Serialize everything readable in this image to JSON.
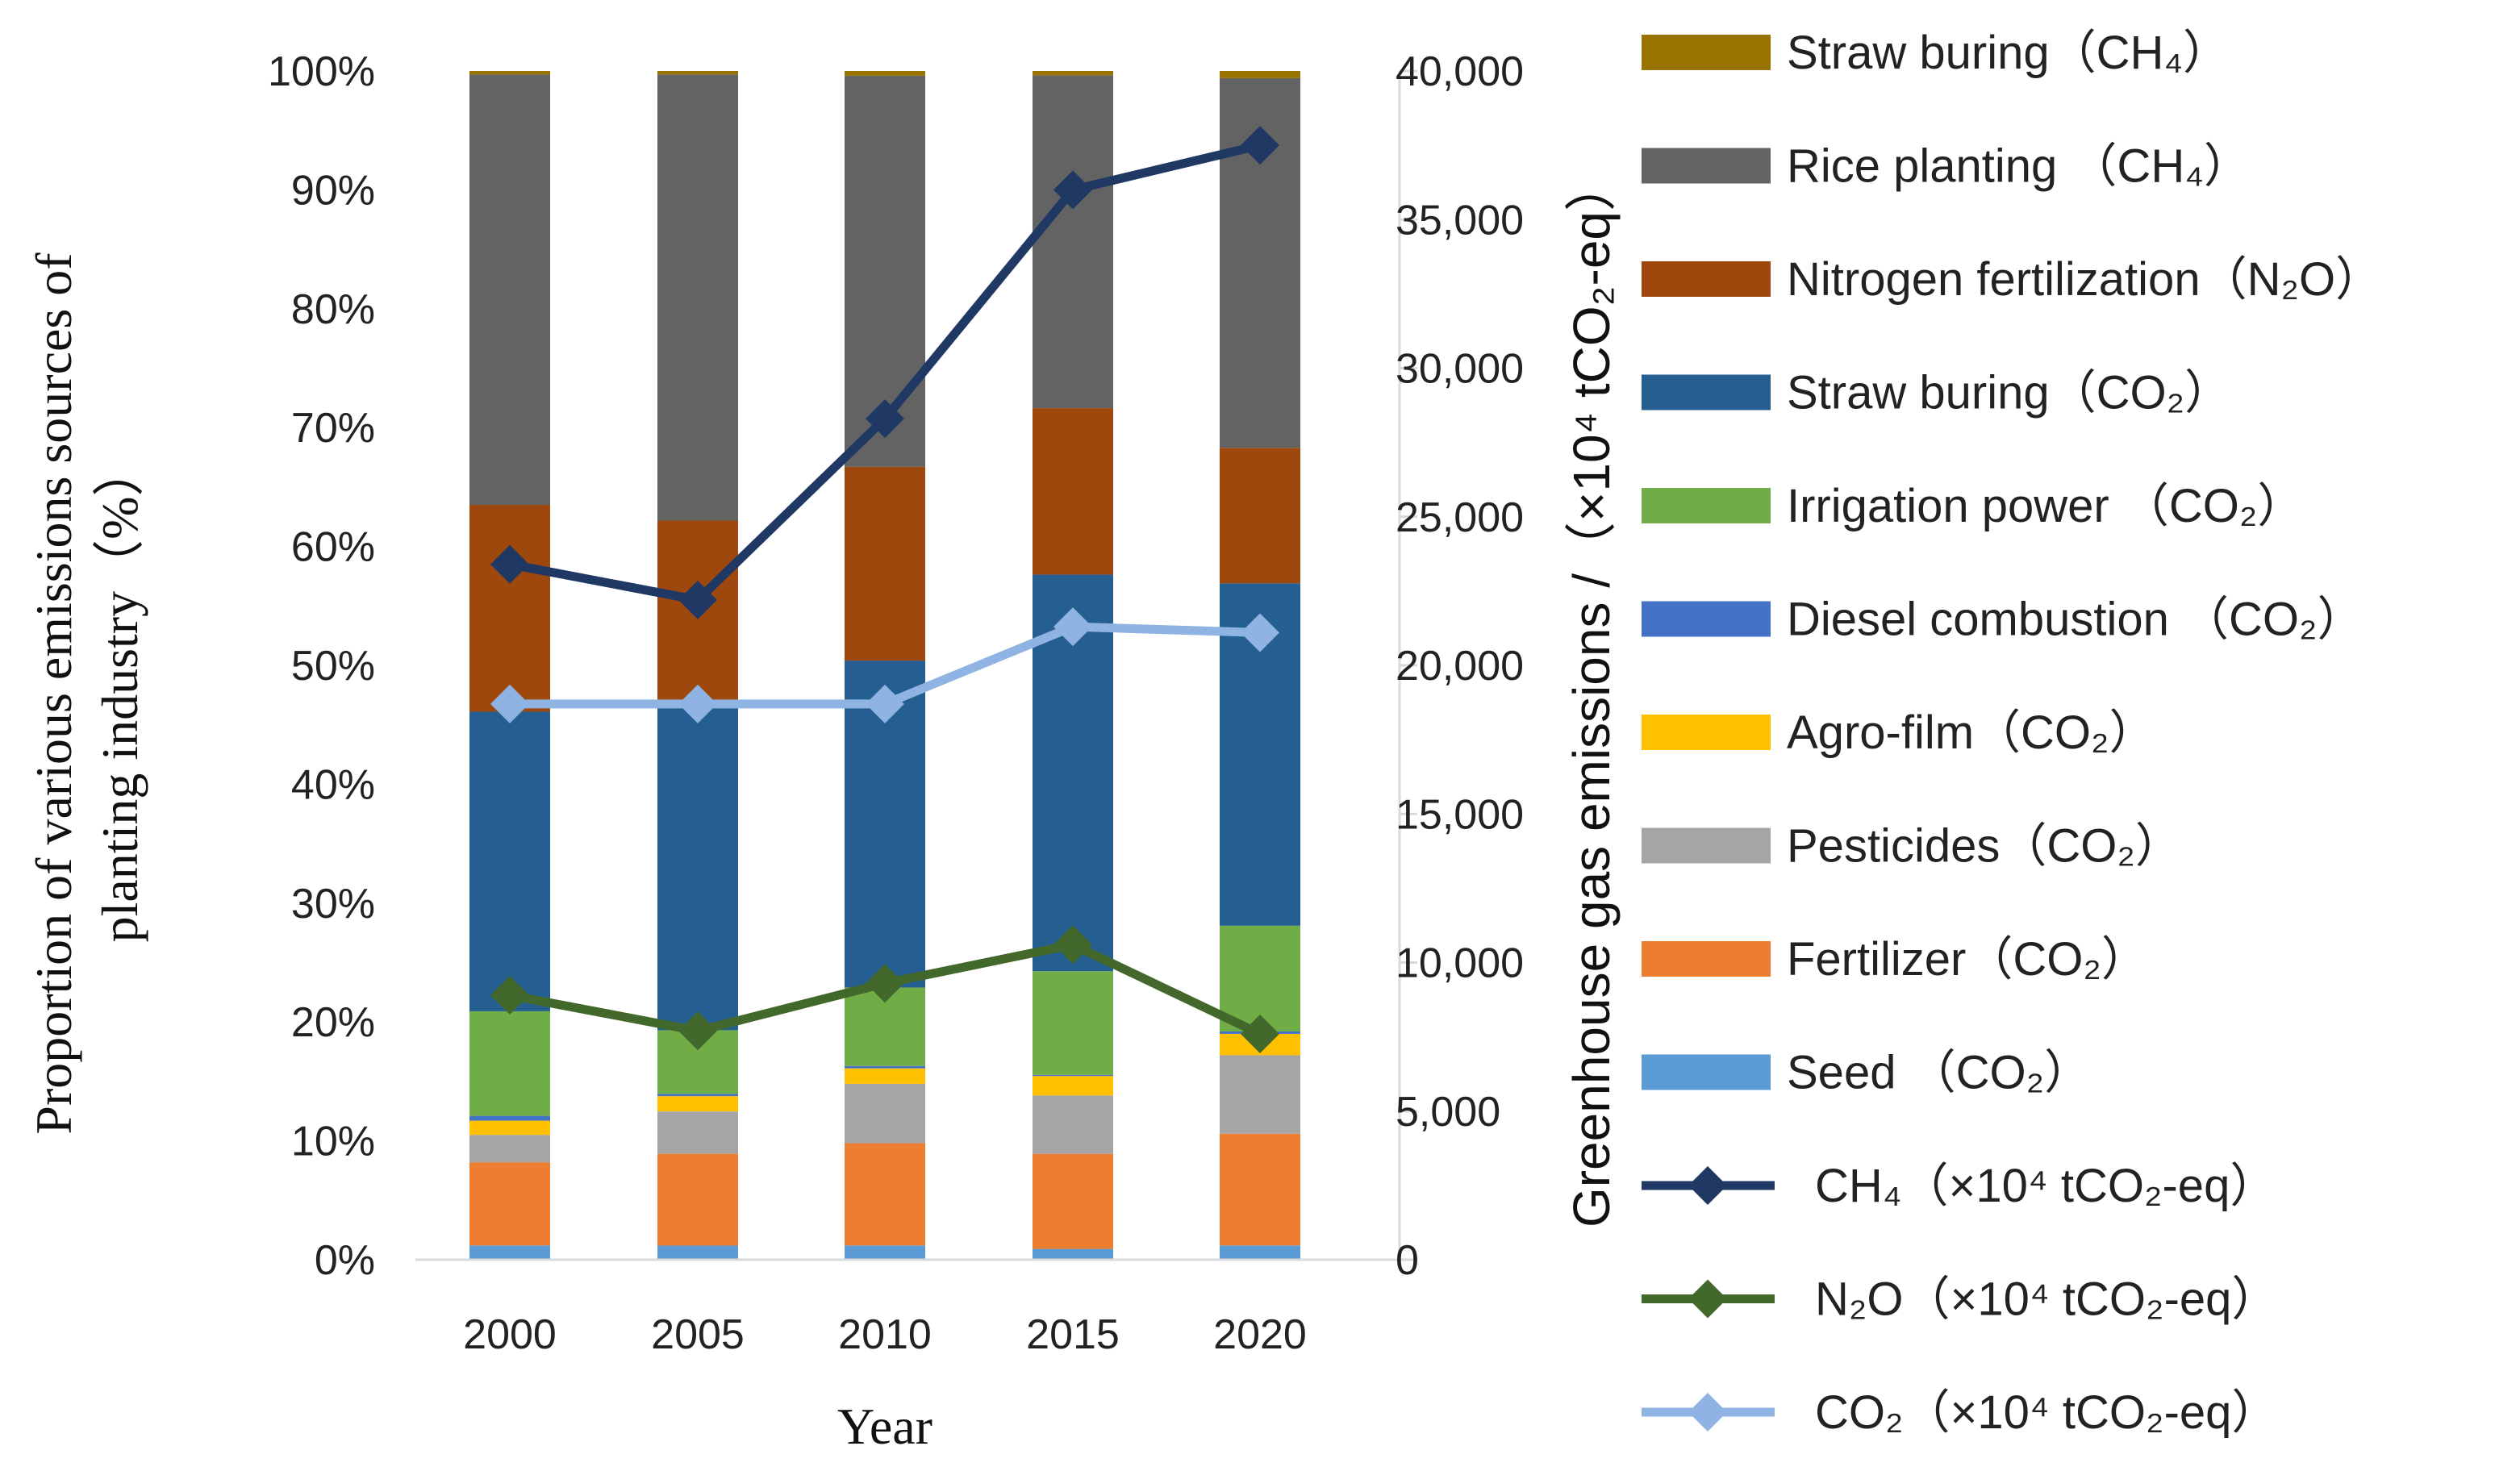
{
  "chart_data": {
    "type": "bar",
    "stacked": true,
    "normalized": true,
    "categories": [
      "2000",
      "2005",
      "2010",
      "2015",
      "2020"
    ],
    "xlabel": "Year",
    "ylabel_left": "Proportion of various emissions sources of planting industry（%）",
    "ylabel_left_line1": "Proportion of various emissions sources of",
    "ylabel_left_line2": "planting industry（%）",
    "ylabel_right": "Greenhouse gas emissions /（×10⁴ tCO₂-eq）",
    "ylim_left": [
      0,
      100
    ],
    "ylim_right": [
      0,
      40000
    ],
    "left_ticks": [
      "0%",
      "10%",
      "20%",
      "30%",
      "40%",
      "50%",
      "60%",
      "70%",
      "80%",
      "90%",
      "100%"
    ],
    "right_ticks": [
      "0",
      "5,000",
      "10,000",
      "15,000",
      "20,000",
      "25,000",
      "30,000",
      "35,000",
      "40,000"
    ],
    "bar_series": [
      {
        "name": "Seed",
        "label": "Seed （CO₂）",
        "color": "#5b9bd5",
        "values": [
          1.2,
          1.2,
          1.2,
          1.0,
          1.2
        ]
      },
      {
        "name": "Fertilizer",
        "label": "Fertilizer（CO₂）",
        "color": "#ed7d31",
        "values": [
          7.0,
          7.8,
          8.6,
          8.8,
          9.4
        ]
      },
      {
        "name": "Pesticides",
        "label": "Pesticides（CO₂）",
        "color": "#a5a5a5",
        "values": [
          2.3,
          3.6,
          5.0,
          5.4,
          6.6
        ]
      },
      {
        "name": "Agro-film",
        "label": "Agro-film（CO₂）",
        "color": "#ffc000",
        "values": [
          1.2,
          1.3,
          1.3,
          1.8,
          1.8
        ]
      },
      {
        "name": "Diesel combustion",
        "label": "Diesel combustion （CO₂）",
        "color": "#4472c4",
        "values": [
          0.4,
          0.2,
          0.2,
          0.1,
          0.2
        ]
      },
      {
        "name": "Irrigation power",
        "label": "Irrigation power （CO₂）",
        "color": "#70ad47",
        "values": [
          8.8,
          5.4,
          6.6,
          9.6,
          8.9
        ]
      },
      {
        "name": "Straw buring CO2",
        "label": "Straw buring（CO₂）",
        "color": "#255e91",
        "values": [
          25.2,
          27.5,
          27.5,
          36.7,
          28.8
        ]
      },
      {
        "name": "Nitrogen fertilization",
        "label": "Nitrogen fertilization（N₂O）",
        "color": "#9e480e",
        "values": [
          17.4,
          15.8,
          16.3,
          15.4,
          11.4
        ]
      },
      {
        "name": "Rice planting",
        "label": "Rice planting （CH₄）",
        "color": "#636363",
        "values": [
          36.2,
          37.9,
          32.9,
          30.8,
          31.1
        ]
      },
      {
        "name": "Straw buring CH4",
        "label": "Straw buring（CH₄）",
        "color": "#997300",
        "values": [
          0.3,
          0.3,
          0.4,
          0.4,
          0.6
        ]
      }
    ],
    "line_series": [
      {
        "name": "CH4",
        "label": "CH₄（×10⁴ tCO₂-eq）",
        "color": "#203864",
        "axis": "right",
        "values": [
          23400,
          22200,
          28300,
          36000,
          37500
        ]
      },
      {
        "name": "N2O",
        "label": "N₂O（×10⁴ tCO₂-eq）",
        "color": "#43682b",
        "axis": "right",
        "values": [
          8900,
          7700,
          9300,
          10600,
          7600
        ]
      },
      {
        "name": "CO2",
        "label": "CO₂（×10⁴ tCO₂-eq）",
        "color": "#8fb4e3",
        "axis": "right",
        "values": [
          18700,
          18700,
          18700,
          21300,
          21100
        ]
      }
    ],
    "legend_position": "right",
    "grid": false
  }
}
